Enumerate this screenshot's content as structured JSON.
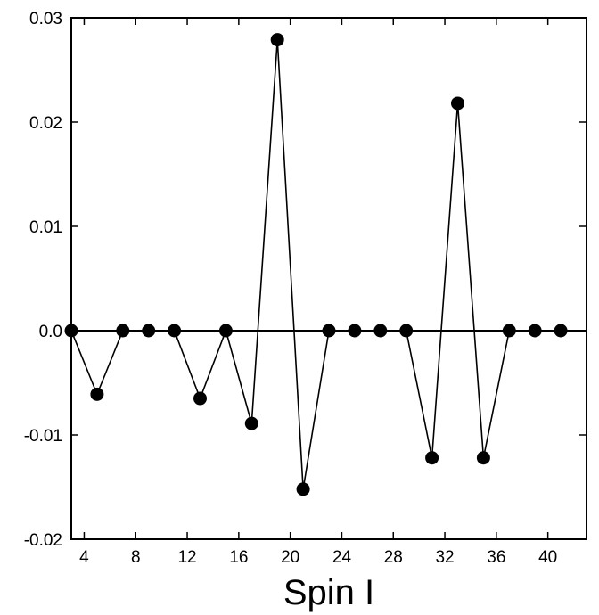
{
  "chart_data": {
    "type": "line",
    "xlabel": "Spin I",
    "ylabel": "",
    "xlim": [
      3,
      43
    ],
    "ylim": [
      -0.02,
      0.03
    ],
    "x_ticks": [
      4,
      8,
      12,
      16,
      20,
      24,
      28,
      32,
      36,
      40
    ],
    "x_tick_labels": [
      "4",
      "8",
      "12",
      "16",
      "20",
      "24",
      "28",
      "32",
      "36",
      "40"
    ],
    "y_ticks": [
      -0.02,
      -0.01,
      0.0,
      0.01,
      0.02,
      0.03
    ],
    "y_tick_labels": [
      "-0.02",
      "-0.01",
      "0.0",
      "0.01",
      "0.02",
      "0.03"
    ],
    "reference_line_y": 0.0,
    "grid": false,
    "marker": "filled-circle",
    "series": [
      {
        "x": [
          3,
          5,
          7,
          9,
          11,
          13,
          15,
          17,
          19,
          21,
          23,
          25,
          27,
          29,
          31,
          33,
          35,
          37,
          39,
          41
        ],
        "y": [
          0.0,
          -0.0061,
          0.0,
          0.0,
          0.0,
          -0.0065,
          0.0,
          -0.0089,
          0.0279,
          -0.0152,
          0.0,
          0.0,
          0.0,
          0.0,
          -0.0122,
          0.0218,
          -0.0122,
          0.0,
          0.0,
          0.0
        ]
      }
    ],
    "colors": {
      "line": "#000000",
      "marker": "#000000",
      "frame": "#000000"
    }
  }
}
